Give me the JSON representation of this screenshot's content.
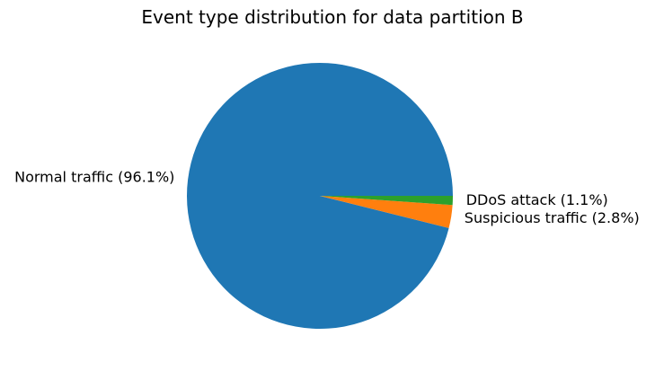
{
  "chart_data": {
    "type": "pie",
    "title": "Event type distribution for data partition B",
    "start_angle_deg": 0,
    "direction": "counterclockwise",
    "slices": [
      {
        "label": "Normal traffic (96.1%)",
        "value": 96.1,
        "color": "#1f77b4"
      },
      {
        "label": "Suspicious traffic (2.8%)",
        "value": 2.8,
        "color": "#ff7f0e"
      },
      {
        "label": "DDoS attack (1.1%)",
        "value": 1.1,
        "color": "#2ca02c"
      }
    ]
  }
}
